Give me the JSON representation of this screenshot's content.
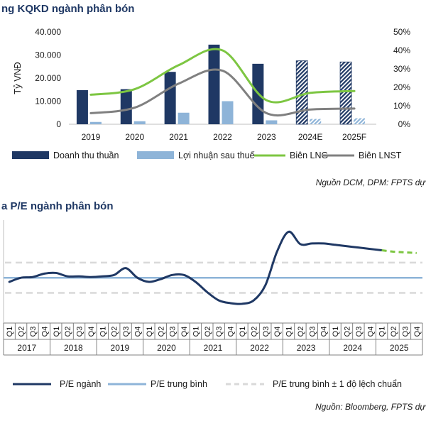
{
  "chart_data": [
    {
      "type": "bar",
      "title": "ng KQKD ngành phân bón",
      "ylabel": "Tỷ VNĐ",
      "ylim": [
        0,
        40000
      ],
      "y2lim": [
        0,
        50
      ],
      "y_ticks": [
        "0",
        "10.000",
        "20.000",
        "30.000",
        "40.000"
      ],
      "y2_ticks": [
        "0%",
        "10%",
        "20%",
        "30%",
        "40%",
        "50%"
      ],
      "categories": [
        "2019",
        "2020",
        "2021",
        "2022",
        "2023",
        "2024E",
        "2025F"
      ],
      "forecast_categories": [
        "2024E",
        "2025F"
      ],
      "series": [
        {
          "name": "Doanh thu thuần",
          "kind": "bar",
          "axis": "left",
          "color": "#1f3864",
          "values": [
            14800,
            15200,
            22700,
            34500,
            26200,
            27500,
            27000
          ]
        },
        {
          "name": "Lợi nhuận sau thuế",
          "kind": "bar",
          "axis": "left",
          "color": "#8eb4d8",
          "values": [
            1000,
            1300,
            5000,
            10000,
            1700,
            2300,
            2600
          ]
        },
        {
          "name": "Biên LNG",
          "kind": "line",
          "axis": "right",
          "color": "#7dc642",
          "values": [
            16,
            19,
            32,
            40,
            13,
            17,
            18
          ]
        },
        {
          "name": "Biên LNST",
          "kind": "line",
          "axis": "right",
          "color": "#808080",
          "values": [
            6,
            9,
            22,
            29,
            6,
            8,
            8.5
          ]
        }
      ],
      "source": "Nguồn DCM, DPM: FPTS dự"
    },
    {
      "type": "line",
      "title": "a P/E ngành phân bón",
      "quarters": [
        "Q1",
        "Q2",
        "Q3",
        "Q4"
      ],
      "years": [
        "2017",
        "2018",
        "2019",
        "2020",
        "2021",
        "2022",
        "2023",
        "2024",
        "2025"
      ],
      "series": [
        {
          "name": "P/E ngành",
          "color": "#1f3864",
          "x": [
            0,
            1,
            2,
            3,
            4,
            5,
            6,
            7,
            8,
            9,
            10,
            11,
            12,
            13,
            14,
            15,
            16,
            17,
            18,
            19,
            20,
            21,
            22,
            23,
            24,
            25,
            26,
            27,
            28,
            29,
            30,
            31,
            32,
            33,
            34,
            35
          ],
          "values": [
            11.0,
            11.6,
            11.7,
            12.2,
            12.3,
            11.8,
            11.8,
            11.7,
            11.8,
            12.0,
            13.0,
            11.6,
            11.0,
            11.4,
            12.0,
            12.0,
            11.0,
            9.5,
            8.3,
            7.9,
            7.8,
            8.3,
            10.5,
            15.4,
            18.3,
            16.5,
            16.6,
            16.6,
            16.4,
            16.2,
            16.0,
            15.8,
            15.6,
            15.4,
            15.3,
            15.2
          ]
        },
        {
          "name": "P/E trung bình",
          "color": "#8eb4d8",
          "value": 11.6
        },
        {
          "name": "P/E trung bình ± 1 độ lệch chuẩn",
          "color": "#d9d9d9",
          "values": [
            9.4,
            13.8
          ]
        }
      ],
      "forecast_from_index": 32,
      "ylim": [
        5,
        20
      ],
      "source": "Nguồn: Bloomberg, FPTS dự"
    }
  ]
}
